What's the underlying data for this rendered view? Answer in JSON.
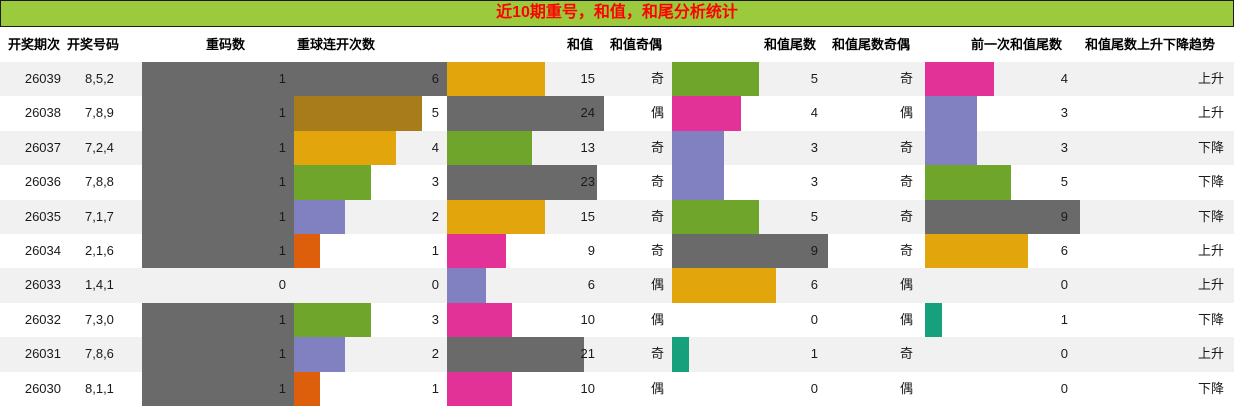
{
  "title": "近10期重号，和值，和尾分析统计",
  "colors": {
    "title_bg": "#9BCB3C",
    "title_text": "#FF0000",
    "title_border": "#1a1a1a",
    "row_alt_bg": "#F1F1F1",
    "row_bg": "#FFFFFF",
    "bars": {
      "gray": "#6A6A6A",
      "darkgold": "#A97C1B",
      "gold": "#E2A50C",
      "green": "#70A52C",
      "purple": "#8181C2",
      "magenta": "#E23197",
      "orange": "#DD5E0B",
      "teal": "#17A07C"
    }
  },
  "chart_data": {
    "type": "table",
    "title": "近10期重号，和值，和尾分析统计",
    "columns": [
      "开奖期次",
      "开奖号码",
      "重码数",
      "重球连开次数",
      "和值",
      "和值奇偶",
      "和值尾数",
      "和值尾数奇偶",
      "前一次和值尾数",
      "和值尾数上升下降趋势"
    ],
    "bar_scales": {
      "dup": 1,
      "streak": 6,
      "sum": 24,
      "tail": 9,
      "prev_tail": 9
    },
    "rows": [
      {
        "period": "26039",
        "numbers": "8,5,2",
        "dup": 1,
        "dup_color": "gray",
        "streak": 6,
        "streak_color": "gray",
        "sum": 15,
        "sum_color": "gold",
        "sum_parity": "奇",
        "tail": 5,
        "tail_color": "green",
        "tail_parity": "奇",
        "prev_tail": 4,
        "prev_tail_color": "magenta",
        "trend": "上升"
      },
      {
        "period": "26038",
        "numbers": "7,8,9",
        "dup": 1,
        "dup_color": "gray",
        "streak": 5,
        "streak_color": "darkgold",
        "sum": 24,
        "sum_color": "gray",
        "sum_parity": "偶",
        "tail": 4,
        "tail_color": "magenta",
        "tail_parity": "偶",
        "prev_tail": 3,
        "prev_tail_color": "purple",
        "trend": "上升"
      },
      {
        "period": "26037",
        "numbers": "7,2,4",
        "dup": 1,
        "dup_color": "gray",
        "streak": 4,
        "streak_color": "gold",
        "sum": 13,
        "sum_color": "green",
        "sum_parity": "奇",
        "tail": 3,
        "tail_color": "purple",
        "tail_parity": "奇",
        "prev_tail": 3,
        "prev_tail_color": "purple",
        "trend": "下降"
      },
      {
        "period": "26036",
        "numbers": "7,8,8",
        "dup": 1,
        "dup_color": "gray",
        "streak": 3,
        "streak_color": "green",
        "sum": 23,
        "sum_color": "gray",
        "sum_parity": "奇",
        "tail": 3,
        "tail_color": "purple",
        "tail_parity": "奇",
        "prev_tail": 5,
        "prev_tail_color": "green",
        "trend": "下降"
      },
      {
        "period": "26035",
        "numbers": "7,1,7",
        "dup": 1,
        "dup_color": "gray",
        "streak": 2,
        "streak_color": "purple",
        "sum": 15,
        "sum_color": "gold",
        "sum_parity": "奇",
        "tail": 5,
        "tail_color": "green",
        "tail_parity": "奇",
        "prev_tail": 9,
        "prev_tail_color": "gray",
        "trend": "下降"
      },
      {
        "period": "26034",
        "numbers": "2,1,6",
        "dup": 1,
        "dup_color": "gray",
        "streak": 1,
        "streak_color": "orange",
        "sum": 9,
        "sum_color": "magenta",
        "sum_parity": "奇",
        "tail": 9,
        "tail_color": "gray",
        "tail_parity": "奇",
        "prev_tail": 6,
        "prev_tail_color": "gold",
        "trend": "上升"
      },
      {
        "period": "26033",
        "numbers": "1,4,1",
        "dup": 0,
        "dup_color": null,
        "streak": 0,
        "streak_color": null,
        "sum": 6,
        "sum_color": "purple",
        "sum_parity": "偶",
        "tail": 6,
        "tail_color": "gold",
        "tail_parity": "偶",
        "prev_tail": 0,
        "prev_tail_color": null,
        "trend": "上升"
      },
      {
        "period": "26032",
        "numbers": "7,3,0",
        "dup": 1,
        "dup_color": "gray",
        "streak": 3,
        "streak_color": "green",
        "sum": 10,
        "sum_color": "magenta",
        "sum_parity": "偶",
        "tail": 0,
        "tail_color": null,
        "tail_parity": "偶",
        "prev_tail": 1,
        "prev_tail_color": "teal",
        "trend": "下降"
      },
      {
        "period": "26031",
        "numbers": "7,8,6",
        "dup": 1,
        "dup_color": "gray",
        "streak": 2,
        "streak_color": "purple",
        "sum": 21,
        "sum_color": "gray",
        "sum_parity": "奇",
        "tail": 1,
        "tail_color": "teal",
        "tail_parity": "奇",
        "prev_tail": 0,
        "prev_tail_color": null,
        "trend": "上升"
      },
      {
        "period": "26030",
        "numbers": "8,1,1",
        "dup": 1,
        "dup_color": "gray",
        "streak": 1,
        "streak_color": "orange",
        "sum": 10,
        "sum_color": "magenta",
        "sum_parity": "偶",
        "tail": 0,
        "tail_color": null,
        "tail_parity": "偶",
        "prev_tail": 0,
        "prev_tail_color": null,
        "trend": "下降"
      }
    ]
  }
}
